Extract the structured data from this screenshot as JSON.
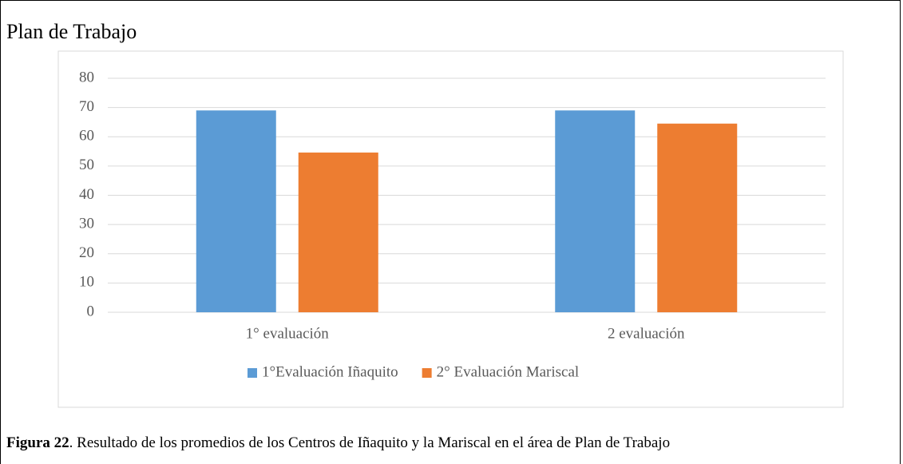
{
  "chart_data": {
    "type": "bar",
    "title": "Plan de Trabajo",
    "categories": [
      "1° evaluación",
      "2 evaluación"
    ],
    "series": [
      {
        "name": "1°Evaluación Iñaquito",
        "color": "#5b9bd5",
        "values": [
          69,
          69
        ]
      },
      {
        "name": "2° Evaluación Mariscal",
        "color": "#ed7d31",
        "values": [
          54.6,
          64.5
        ]
      }
    ],
    "ylim": [
      0,
      80
    ],
    "yticks": [
      0,
      10,
      20,
      30,
      40,
      50,
      60,
      70,
      80
    ],
    "grid": true,
    "legend": "bottom"
  },
  "caption": {
    "label": "Figura 22",
    "text": ". Resultado de los promedios de los Centros de Iñaquito y la Mariscal en el área de Plan de Trabajo"
  }
}
